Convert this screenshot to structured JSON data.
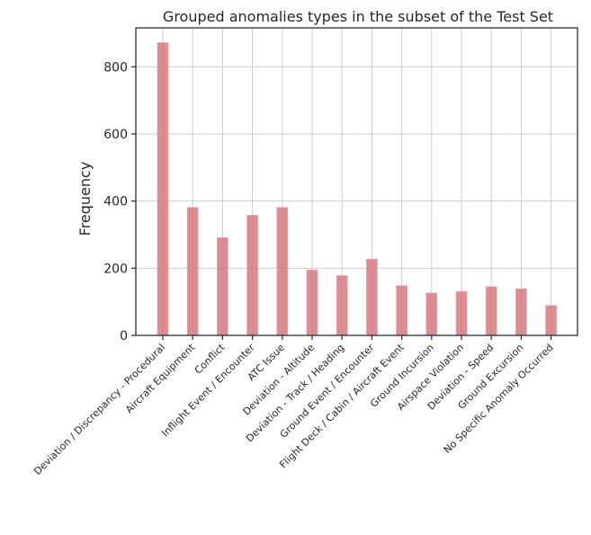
{
  "chart_data": {
    "type": "bar",
    "title": "Grouped anomalies types in the subset of the Test Set",
    "xlabel": "",
    "ylabel": "Frequency",
    "categories": [
      "Deviation / Discrepancy - Procedural",
      "Aircraft Equipment",
      "Conflict",
      "Inflight Event / Encounter",
      "ATC Issue",
      "Deviation - Altitude",
      "Deviation - Track / Heading",
      "Ground Event / Encounter",
      "Flight Deck / Cabin / Aircraft Event",
      "Ground Incursion",
      "Airspace Violation",
      "Deviation - Speed",
      "Ground Excursion",
      "No Specific Anomaly Occurred"
    ],
    "values": [
      872,
      381,
      291,
      358,
      381,
      195,
      178,
      227,
      148,
      126,
      131,
      145,
      139,
      89
    ],
    "ylim": [
      0,
      916
    ],
    "yticks": [
      0,
      200,
      400,
      600,
      800
    ],
    "grid": true,
    "bar_color": "#d6797e"
  }
}
